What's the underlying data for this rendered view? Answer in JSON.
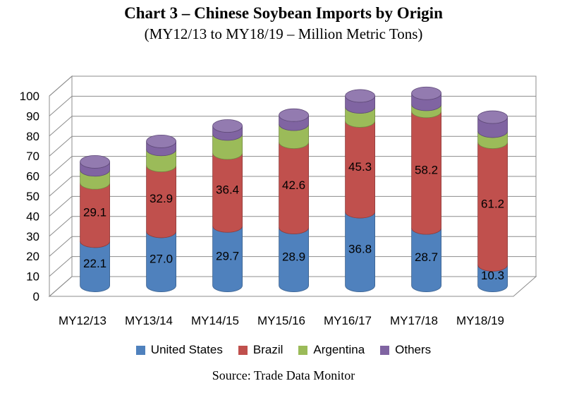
{
  "chart_data": {
    "type": "bar",
    "stacked": true,
    "style": "3d-cylinder",
    "title": "Chart 3 – Chinese Soybean Imports by Origin",
    "subtitle": "(MY12/13 to MY18/19 – Million Metric Tons)",
    "source": "Source: Trade Data Monitor",
    "xlabel": "",
    "ylabel": "",
    "ylim": [
      0,
      100
    ],
    "yticks": [
      0,
      10,
      20,
      30,
      40,
      50,
      60,
      70,
      80,
      90,
      100
    ],
    "grid": true,
    "legend_position": "bottom",
    "categories": [
      "MY12/13",
      "MY13/14",
      "MY14/15",
      "MY15/16",
      "MY16/17",
      "MY17/18",
      "MY18/19"
    ],
    "series": [
      {
        "name": "United States",
        "color": "#4f81bd",
        "values": [
          22.1,
          27.0,
          29.7,
          28.9,
          36.8,
          28.7,
          10.3
        ],
        "labels": [
          "22.1",
          "27.0",
          "29.7",
          "28.9",
          "36.8",
          "28.7",
          "10.3"
        ]
      },
      {
        "name": "Brazil",
        "color": "#c0504d",
        "values": [
          29.1,
          32.9,
          36.4,
          42.6,
          45.3,
          58.2,
          61.2
        ],
        "labels": [
          "29.1",
          "32.9",
          "36.4",
          "42.6",
          "45.3",
          "58.2",
          "61.2"
        ]
      },
      {
        "name": "Argentina",
        "color": "#9bbb59",
        "values": [
          6.5,
          8.0,
          9.5,
          9.0,
          7.0,
          3.5,
          5.5
        ],
        "labels": []
      },
      {
        "name": "Others",
        "color": "#8064a2",
        "values": [
          4.0,
          4.0,
          4.0,
          4.5,
          5.5,
          5.5,
          7.0
        ],
        "labels": []
      }
    ]
  }
}
